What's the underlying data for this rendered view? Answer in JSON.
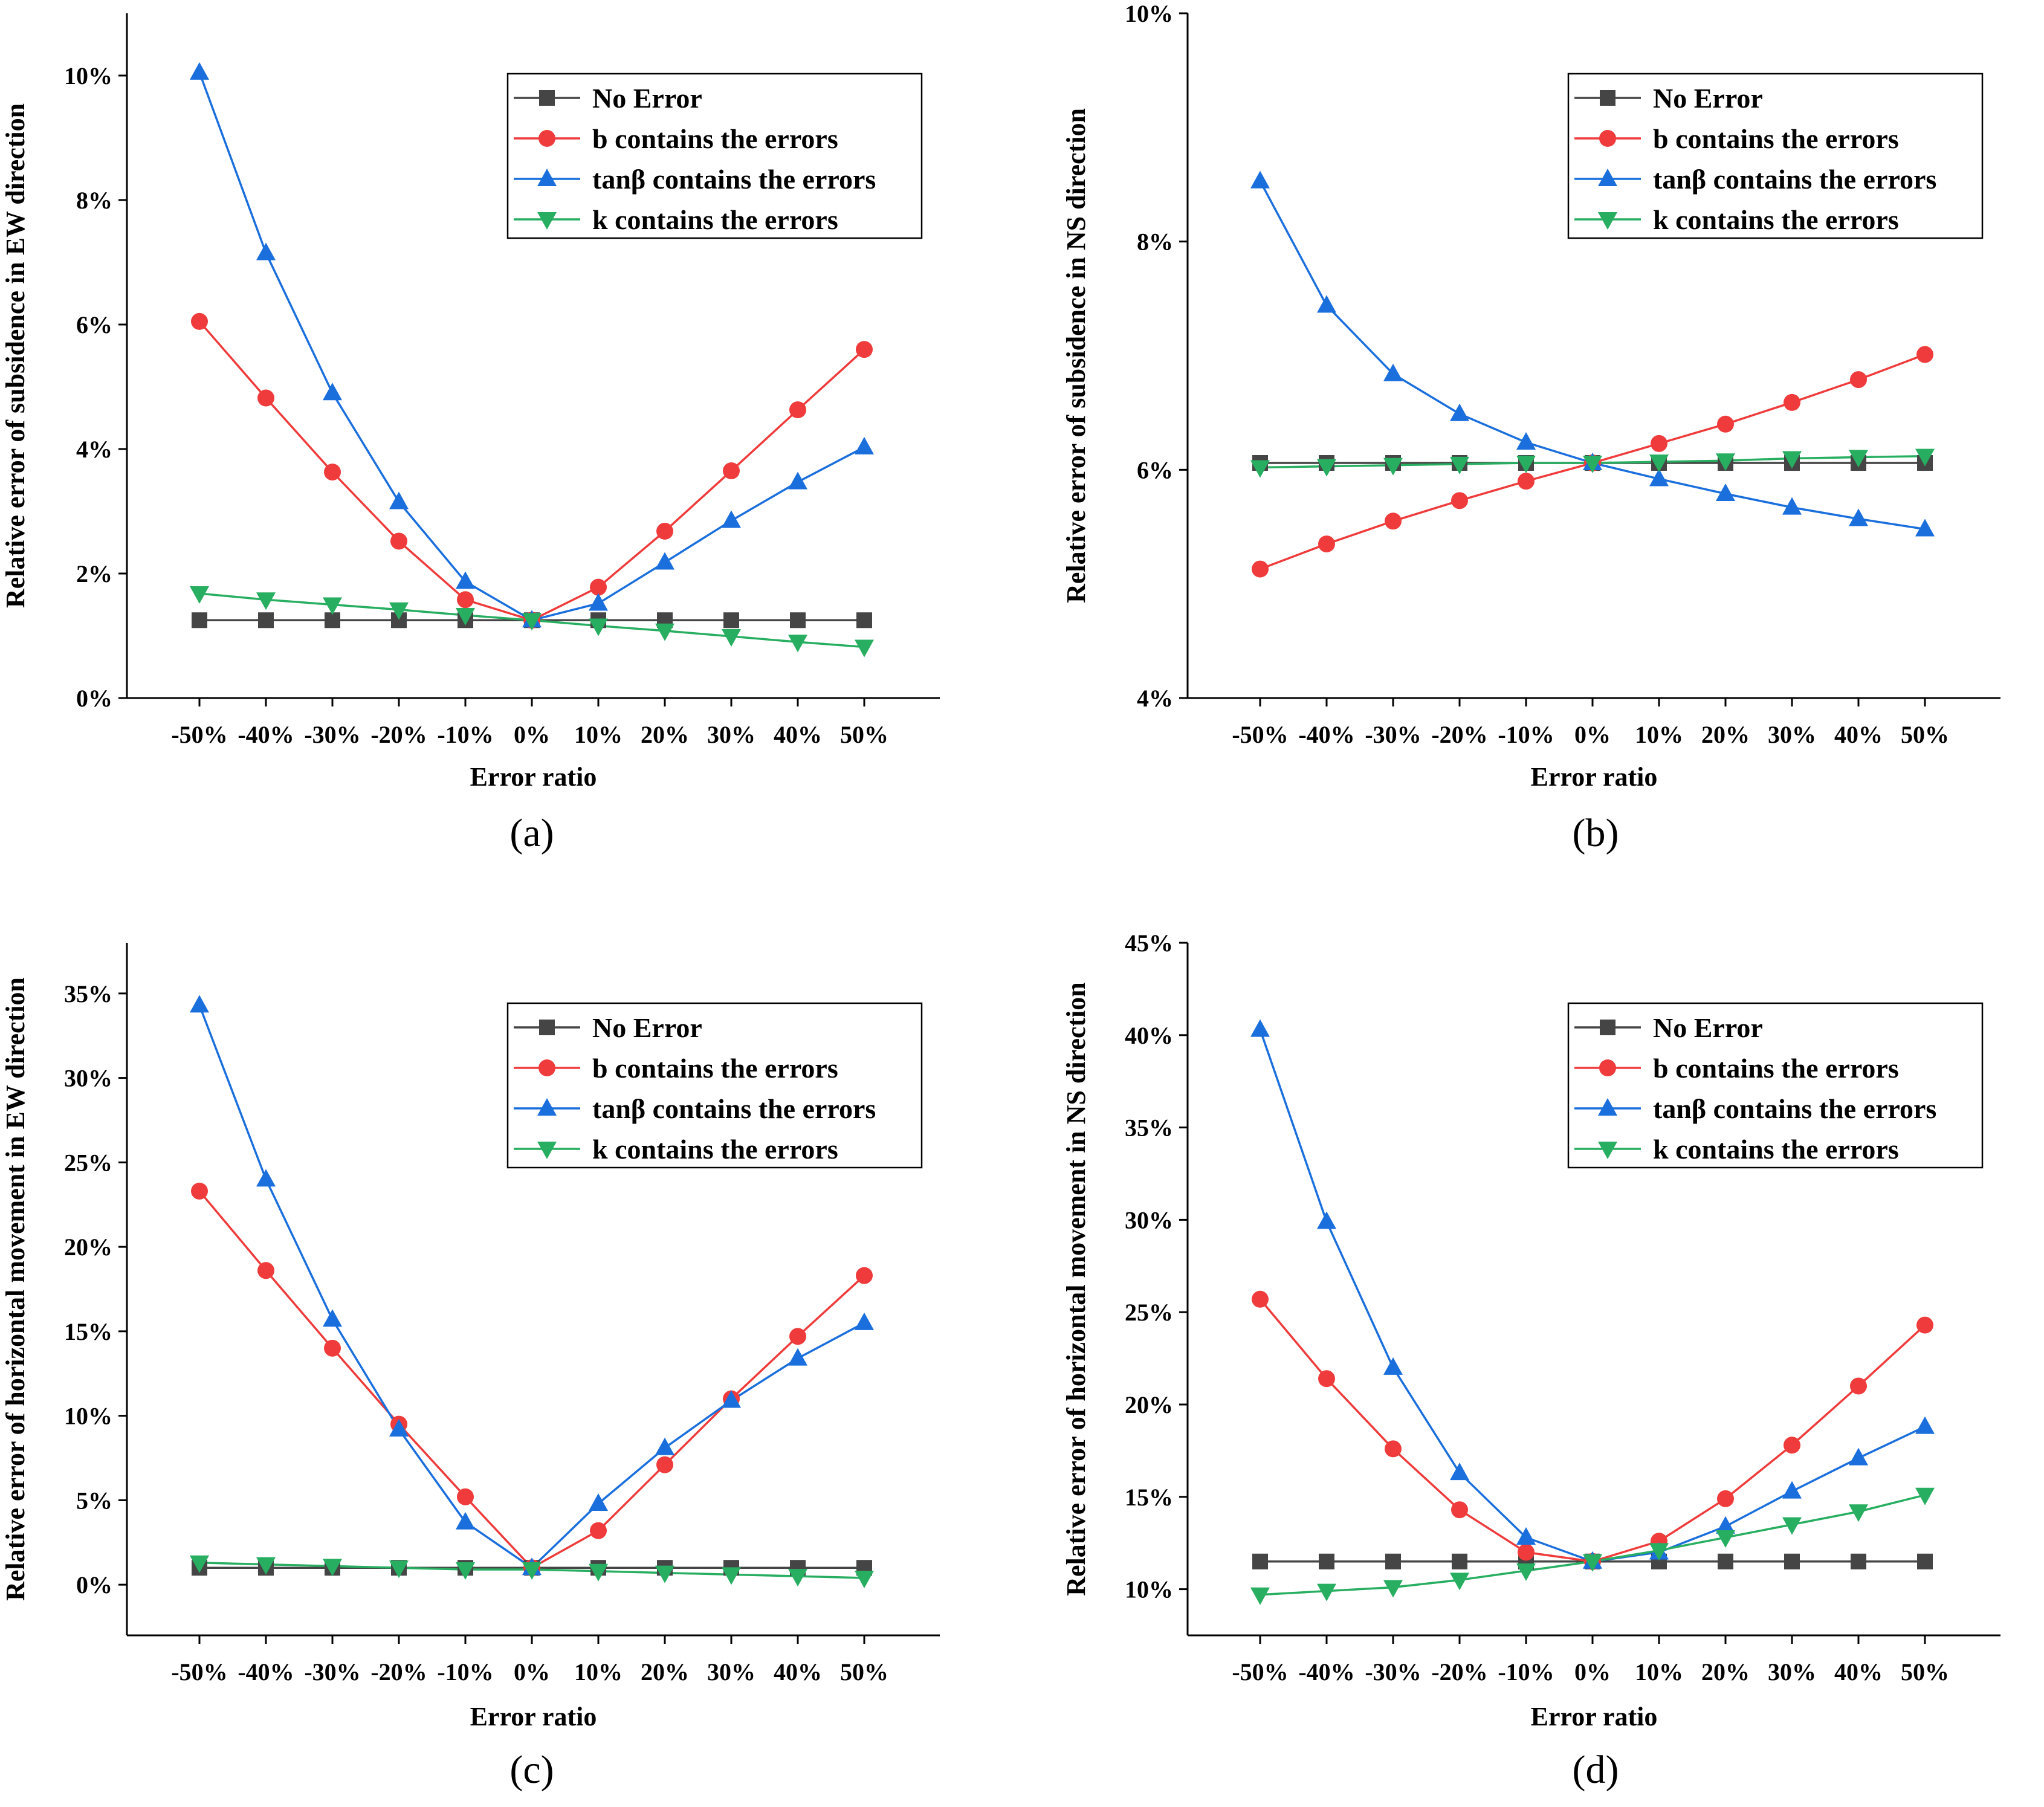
{
  "figure": {
    "legend_labels": [
      "No Error",
      "b contains the errors",
      "tanβ contains the errors",
      "k contains the errors"
    ],
    "colors": {
      "no_error": "#454545",
      "b": "#ef3b3b",
      "tan": "#1a6fdd",
      "k": "#27ae60"
    }
  },
  "chart_data": [
    {
      "type": "line",
      "caption": "(a)",
      "title": "",
      "xlabel": "Error ratio",
      "ylabel": "Relative error of subsidence in EW direction",
      "categories": [
        "-50%",
        "-40%",
        "-30%",
        "-20%",
        "-10%",
        "0%",
        "10%",
        "20%",
        "30%",
        "40%",
        "50%"
      ],
      "ylim": [
        0,
        11
      ],
      "yticks": [
        0,
        2,
        4,
        6,
        8,
        10
      ],
      "ytick_labels": [
        "0%",
        "2%",
        "4%",
        "6%",
        "8%",
        "10%"
      ],
      "legend_position": "top-right",
      "series": [
        {
          "name": "No Error",
          "marker": "square",
          "values": [
            1.25,
            1.25,
            1.25,
            1.25,
            1.25,
            1.25,
            1.25,
            1.25,
            1.25,
            1.25,
            1.25
          ]
        },
        {
          "name": "b contains the errors",
          "marker": "circle",
          "values": [
            6.05,
            4.82,
            3.63,
            2.52,
            1.58,
            1.25,
            1.78,
            2.68,
            3.65,
            4.63,
            5.6
          ]
        },
        {
          "name": "tanβ contains the errors",
          "marker": "triangle-up",
          "values": [
            10.05,
            7.15,
            4.9,
            3.15,
            1.87,
            1.25,
            1.52,
            2.18,
            2.85,
            3.47,
            4.03
          ]
        },
        {
          "name": "k contains the errors",
          "marker": "triangle-down",
          "values": [
            1.68,
            1.58,
            1.5,
            1.42,
            1.33,
            1.25,
            1.16,
            1.08,
            0.99,
            0.9,
            0.82
          ]
        }
      ]
    },
    {
      "type": "line",
      "caption": "(b)",
      "title": "",
      "xlabel": "Error ratio",
      "ylabel": "Relative error of subsidence in NS direction",
      "categories": [
        "-50%",
        "-40%",
        "-30%",
        "-20%",
        "-10%",
        "0%",
        "10%",
        "20%",
        "30%",
        "40%",
        "50%"
      ],
      "ylim": [
        4,
        10
      ],
      "yticks": [
        4,
        6,
        8,
        10
      ],
      "ytick_labels": [
        "4%",
        "6%",
        "8%",
        "10%"
      ],
      "legend_position": "top-right",
      "series": [
        {
          "name": "No Error",
          "marker": "square",
          "values": [
            6.06,
            6.06,
            6.06,
            6.06,
            6.06,
            6.06,
            6.06,
            6.06,
            6.06,
            6.06,
            6.06
          ]
        },
        {
          "name": "b contains the errors",
          "marker": "circle",
          "values": [
            5.13,
            5.35,
            5.55,
            5.73,
            5.9,
            6.06,
            6.23,
            6.4,
            6.59,
            6.79,
            7.01
          ]
        },
        {
          "name": "tanβ contains the errors",
          "marker": "triangle-up",
          "values": [
            8.53,
            7.44,
            6.84,
            6.49,
            6.24,
            6.06,
            5.92,
            5.79,
            5.67,
            5.57,
            5.48
          ]
        },
        {
          "name": "k contains the errors",
          "marker": "triangle-down",
          "values": [
            6.02,
            6.03,
            6.04,
            6.05,
            6.06,
            6.06,
            6.07,
            6.08,
            6.1,
            6.11,
            6.12
          ]
        }
      ]
    },
    {
      "type": "line",
      "caption": "(c)",
      "title": "",
      "xlabel": "Error ratio",
      "ylabel": "Relative error of horizontal movement in EW direction",
      "categories": [
        "-50%",
        "-40%",
        "-30%",
        "-20%",
        "-10%",
        "0%",
        "10%",
        "20%",
        "30%",
        "40%",
        "50%"
      ],
      "ylim": [
        -3,
        38
      ],
      "yticks": [
        0,
        5,
        10,
        15,
        20,
        25,
        30,
        35
      ],
      "ytick_labels": [
        "0%",
        "5%",
        "10%",
        "15%",
        "20%",
        "25%",
        "30%",
        "35%"
      ],
      "legend_position": "top-right",
      "series": [
        {
          "name": "No Error",
          "marker": "square",
          "values": [
            1.0,
            1.0,
            1.0,
            1.0,
            1.0,
            1.0,
            1.0,
            1.0,
            1.0,
            1.0,
            1.0
          ]
        },
        {
          "name": "b contains the errors",
          "marker": "circle",
          "values": [
            23.3,
            18.6,
            14.0,
            9.5,
            5.2,
            1.0,
            3.2,
            7.1,
            11.0,
            14.7,
            18.3
          ]
        },
        {
          "name": "tanβ contains the errors",
          "marker": "triangle-up",
          "values": [
            34.3,
            24.0,
            15.7,
            9.2,
            3.7,
            1.0,
            4.8,
            8.1,
            10.9,
            13.4,
            15.5
          ]
        },
        {
          "name": "k contains the errors",
          "marker": "triangle-down",
          "values": [
            1.3,
            1.2,
            1.1,
            1.0,
            0.9,
            0.9,
            0.8,
            0.7,
            0.6,
            0.5,
            0.4
          ]
        }
      ]
    },
    {
      "type": "line",
      "caption": "(d)",
      "title": "",
      "xlabel": "Error ratio",
      "ylabel": "Relative error of horizontal movement in NS direction",
      "categories": [
        "-50%",
        "-40%",
        "-30%",
        "-20%",
        "-10%",
        "0%",
        "10%",
        "20%",
        "30%",
        "40%",
        "50%"
      ],
      "ylim": [
        7.5,
        45
      ],
      "yticks": [
        10,
        15,
        20,
        25,
        30,
        35,
        40,
        45
      ],
      "ytick_labels": [
        "10%",
        "15%",
        "20%",
        "25%",
        "30%",
        "35%",
        "40%",
        "45%"
      ],
      "legend_position": "top-right",
      "series": [
        {
          "name": "No Error",
          "marker": "square",
          "values": [
            11.5,
            11.5,
            11.5,
            11.5,
            11.5,
            11.5,
            11.5,
            11.5,
            11.5,
            11.5,
            11.5
          ]
        },
        {
          "name": "b contains the errors",
          "marker": "circle",
          "values": [
            25.7,
            21.4,
            17.6,
            14.3,
            12.0,
            11.5,
            12.6,
            14.9,
            17.8,
            21.0,
            24.3
          ]
        },
        {
          "name": "tanβ contains the errors",
          "marker": "triangle-up",
          "values": [
            40.3,
            29.9,
            22.0,
            16.3,
            12.8,
            11.5,
            12.0,
            13.4,
            15.3,
            17.1,
            18.8
          ]
        },
        {
          "name": "k contains the errors",
          "marker": "triangle-down",
          "values": [
            9.7,
            9.9,
            10.1,
            10.5,
            11.0,
            11.5,
            12.1,
            12.8,
            13.5,
            14.2,
            15.1
          ]
        }
      ]
    }
  ]
}
